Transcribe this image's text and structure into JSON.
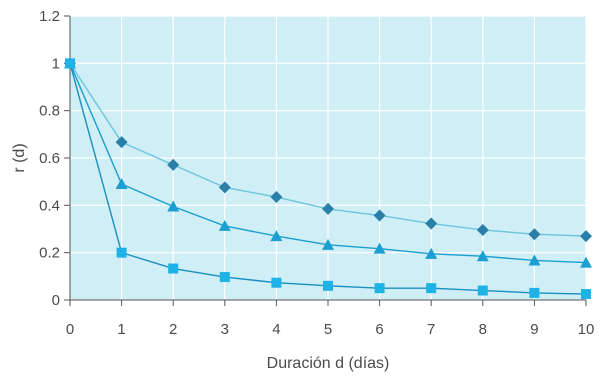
{
  "chart_data": {
    "type": "line",
    "title": "",
    "xlabel": "Duración d (días)",
    "ylabel": "r (d)",
    "x": [
      0,
      1,
      2,
      3,
      4,
      5,
      6,
      7,
      8,
      9,
      10
    ],
    "xlim": [
      0,
      10
    ],
    "ylim": [
      0,
      1.2
    ],
    "x_ticks": [
      "0",
      "1",
      "2",
      "3",
      "4",
      "5",
      "6",
      "7",
      "8",
      "9",
      "10"
    ],
    "y_ticks": [
      "0",
      "0.2",
      "0.4",
      "0.6",
      "0.8",
      "1",
      "1.2"
    ],
    "grid": true,
    "legend": false,
    "plot_background": "#cfeef5",
    "series": [
      {
        "marker": "diamond",
        "color": "#2a7fa8",
        "line_color": "#6cc4de",
        "values": [
          1.0,
          0.667,
          0.571,
          0.476,
          0.435,
          0.385,
          0.357,
          0.323,
          0.296,
          0.278,
          0.27
        ]
      },
      {
        "marker": "triangle",
        "color": "#1b9fd0",
        "line_color": "#1b9fd0",
        "values": [
          1.0,
          0.49,
          0.395,
          0.313,
          0.27,
          0.233,
          0.217,
          0.195,
          0.185,
          0.167,
          0.158
        ]
      },
      {
        "marker": "square",
        "color": "#1fb2e6",
        "line_color": "#1a8fc0",
        "values": [
          1.0,
          0.2,
          0.133,
          0.097,
          0.073,
          0.06,
          0.05,
          0.05,
          0.04,
          0.03,
          0.025
        ]
      }
    ]
  }
}
